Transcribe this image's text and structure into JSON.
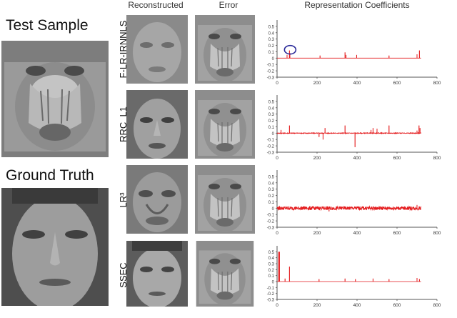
{
  "left": {
    "test_sample_label": "Test Sample",
    "ground_truth_label": "Ground Truth"
  },
  "columns": {
    "reconstructed": "Reconstructed",
    "error": "Error",
    "coefficients": "Representation Coefficients"
  },
  "methods": [
    "F-LR-IRNNLS",
    "RRC_L1",
    "LR³",
    "SSEC"
  ],
  "colors": {
    "series": "#e41a1c",
    "annotation": "#2b2b9a",
    "axis": "#555555"
  },
  "chart_data": [
    {
      "type": "line",
      "title": "",
      "method": "F-LR-IRNNLS",
      "xlim": [
        0,
        800
      ],
      "ylim": [
        -0.3,
        0.6
      ],
      "xticks": [
        0,
        200,
        400,
        600,
        800
      ],
      "yticks": [
        0.5,
        0.4,
        0.3,
        0.2,
        0.1,
        0,
        -0.1,
        -0.2,
        -0.3
      ],
      "ytick_labels": [
        "0.5",
        "0.4",
        "0.3",
        "0.2",
        "0.1",
        "0",
        "-0.1",
        "-0.2",
        "-0.3"
      ],
      "baseline": 0,
      "noise": 0,
      "spikes": [
        [
          50,
          0.05
        ],
        [
          62,
          0.12
        ],
        [
          64,
          0.08
        ],
        [
          215,
          0.04
        ],
        [
          340,
          0.09
        ],
        [
          345,
          0.05
        ],
        [
          398,
          0.05
        ],
        [
          560,
          0.04
        ],
        [
          700,
          0.06
        ],
        [
          712,
          0.12
        ]
      ],
      "annotation": {
        "shape": "ellipse",
        "x": 62,
        "y": 0.12
      }
    },
    {
      "type": "line",
      "title": "",
      "method": "RRC_L1",
      "xlim": [
        0,
        800
      ],
      "ylim": [
        -0.3,
        0.6
      ],
      "xticks": [
        0,
        200,
        400,
        600,
        800
      ],
      "yticks": [
        0.5,
        0.4,
        0.3,
        0.2,
        0.1,
        0,
        -0.1,
        -0.2,
        -0.3
      ],
      "ytick_labels": [
        "0.5",
        "0.4",
        "0.3",
        "0.2",
        "0.1",
        "0",
        "-0.1",
        "-0.2",
        "-0.3"
      ],
      "baseline": 0,
      "noise": 0.006,
      "spikes": [
        [
          20,
          0.05
        ],
        [
          62,
          0.12
        ],
        [
          210,
          -0.06
        ],
        [
          230,
          -0.1
        ],
        [
          240,
          0.08
        ],
        [
          340,
          0.12
        ],
        [
          390,
          -0.22
        ],
        [
          470,
          0.05
        ],
        [
          480,
          0.08
        ],
        [
          500,
          0.07
        ],
        [
          560,
          0.12
        ],
        [
          700,
          0.04
        ],
        [
          710,
          0.12
        ],
        [
          715,
          0.08
        ]
      ]
    },
    {
      "type": "line",
      "title": "",
      "method": "LR³",
      "xlim": [
        0,
        800
      ],
      "ylim": [
        -0.3,
        0.6
      ],
      "xticks": [
        0,
        200,
        400,
        600,
        800
      ],
      "yticks": [
        0.5,
        0.4,
        0.3,
        0.2,
        0.1,
        0,
        -0.1,
        -0.2,
        -0.3
      ],
      "ytick_labels": [
        "0.5",
        "0.4",
        "0.3",
        "0.2",
        "0.1",
        "0",
        "-0.1",
        "-0.2",
        "-0.3"
      ],
      "baseline": 0,
      "noise": 0.03,
      "spikes": [
        [
          260,
          -0.05
        ],
        [
          700,
          0.05
        ]
      ]
    },
    {
      "type": "line",
      "title": "",
      "method": "SSEC",
      "xlim": [
        0,
        800
      ],
      "ylim": [
        -0.3,
        0.6
      ],
      "xticks": [
        0,
        200,
        400,
        600,
        800
      ],
      "yticks": [
        0.5,
        0.4,
        0.3,
        0.2,
        0.1,
        0,
        -0.1,
        -0.2,
        -0.3
      ],
      "ytick_labels": [
        "0.5",
        "0.4",
        "0.3",
        "0.2",
        "0.1",
        "0",
        "-0.1",
        "-0.2",
        "-0.3"
      ],
      "baseline": 0,
      "noise": 0,
      "spikes": [
        [
          8,
          0.5
        ],
        [
          12,
          0.5
        ],
        [
          40,
          0.05
        ],
        [
          62,
          0.25
        ],
        [
          210,
          0.04
        ],
        [
          340,
          0.05
        ],
        [
          392,
          0.04
        ],
        [
          480,
          0.05
        ],
        [
          560,
          0.04
        ],
        [
          700,
          0.06
        ],
        [
          712,
          0.04
        ]
      ]
    }
  ]
}
